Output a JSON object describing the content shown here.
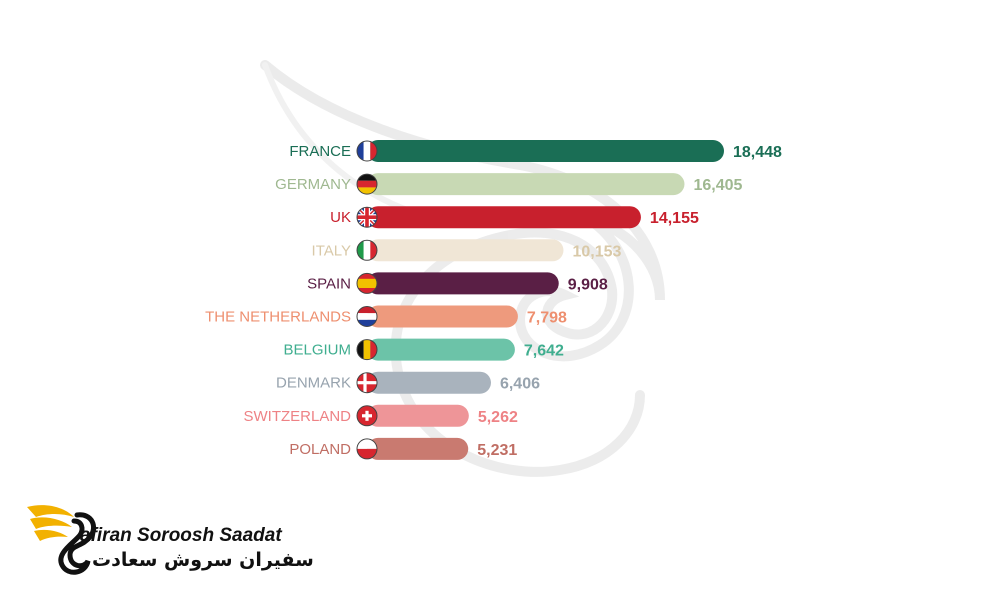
{
  "chart_data": {
    "type": "bar",
    "orientation": "horizontal",
    "categories": [
      "FRANCE",
      "GERMANY",
      "UK",
      "ITALY",
      "SPAIN",
      "THE NETHERLANDS",
      "BELGIUM",
      "DENMARK",
      "SWITZERLAND",
      "POLAND"
    ],
    "values": [
      18448,
      16405,
      14155,
      10153,
      9908,
      7798,
      7642,
      6406,
      5262,
      5231
    ],
    "value_labels": [
      "18,448",
      "16,405",
      "14,155",
      "10,153",
      "9,908",
      "7,798",
      "7,642",
      "6,406",
      "5,262",
      "5,231"
    ],
    "colors": [
      "#1a6e55",
      "#c8d9b4",
      "#c8202d",
      "#f0e6d6",
      "#5a1f45",
      "#ee9a7d",
      "#6cc3a8",
      "#a9b3bd",
      "#ee9598",
      "#c97a70"
    ],
    "label_colors": [
      "#1a6e55",
      "#9fb890",
      "#c8202d",
      "#d9c9a8",
      "#5a1f45",
      "#ee8f6f",
      "#3fae8f",
      "#97a3ae",
      "#ee8285",
      "#c06e64"
    ],
    "flags": [
      "france-flag-icon",
      "germany-flag-icon",
      "uk-flag-icon",
      "italy-flag-icon",
      "spain-flag-icon",
      "netherlands-flag-icon",
      "belgium-flag-icon",
      "denmark-flag-icon",
      "switzerland-flag-icon",
      "poland-flag-icon"
    ],
    "title": "",
    "xlabel": "",
    "ylabel": "",
    "grid": false,
    "legend": "none"
  },
  "logo": {
    "name_en": "afiran Soroosh Saadat",
    "name_fa": "سفیران سروش سعادت",
    "colors": {
      "wing": "#f2b100",
      "swan": "#111111"
    }
  }
}
